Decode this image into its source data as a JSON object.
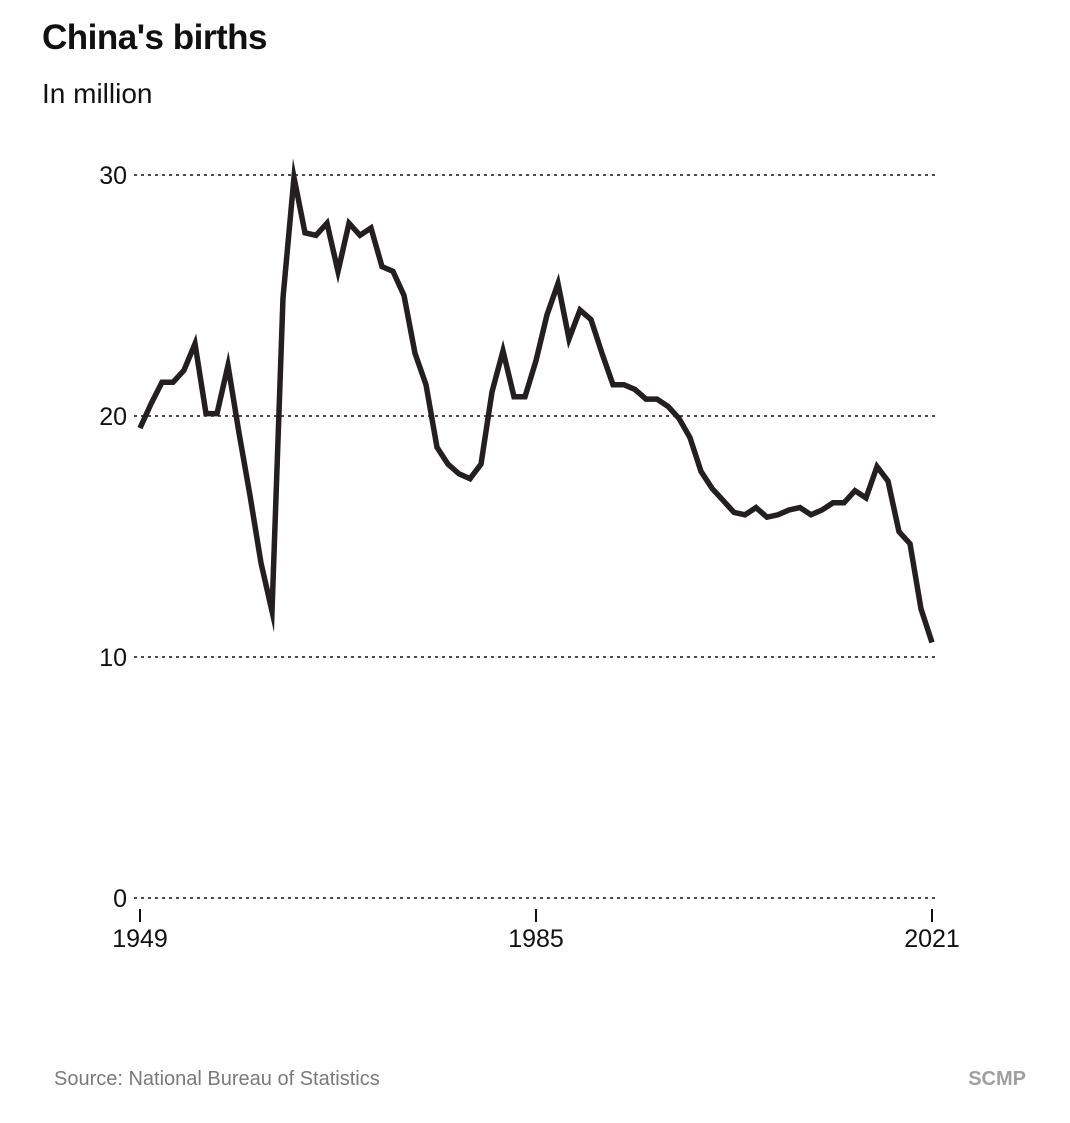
{
  "header": {
    "title": "China's births",
    "subtitle": "In million"
  },
  "footer": {
    "source": "Source: National Bureau of Statistics",
    "brand": "SCMP"
  },
  "colors": {
    "line": "#231f20",
    "grid": "#111111",
    "text": "#111111",
    "footer_text": "#7a7a7a",
    "brand": "#a0a0a0"
  },
  "chart_data": {
    "type": "line",
    "title": "China's births",
    "subtitle": "In million",
    "xlabel": "",
    "ylabel": "",
    "xlim": [
      1949,
      2021
    ],
    "ylim": [
      0,
      30
    ],
    "x_ticks": [
      1949,
      1985,
      2021
    ],
    "y_ticks": [
      0,
      10,
      20,
      30
    ],
    "grid": "horizontal dotted",
    "legend": "none",
    "series": [
      {
        "x": [
          1949,
          1950,
          1951,
          1952,
          1953,
          1954,
          1955,
          1956,
          1957,
          1958,
          1959,
          1960,
          1961,
          1962,
          1963,
          1964,
          1965,
          1966,
          1967,
          1968,
          1969,
          1970,
          1971,
          1972,
          1973,
          1974,
          1975,
          1976,
          1977,
          1978,
          1979,
          1980,
          1981,
          1982,
          1983,
          1984,
          1985,
          1986,
          1987,
          1988,
          1989,
          1990,
          1991,
          1992,
          1993,
          1994,
          1995,
          1996,
          1997,
          1998,
          1999,
          2000,
          2001,
          2002,
          2003,
          2004,
          2005,
          2006,
          2007,
          2008,
          2009,
          2010,
          2011,
          2012,
          2013,
          2014,
          2015,
          2016,
          2017,
          2018,
          2019,
          2020,
          2021
        ],
        "values": [
          19.5,
          20.5,
          21.4,
          21.4,
          21.9,
          23.0,
          20.1,
          20.1,
          22.1,
          19.3,
          16.7,
          13.9,
          11.9,
          24.9,
          29.9,
          27.6,
          27.5,
          28.0,
          26.0,
          28.0,
          27.5,
          27.8,
          26.2,
          26.0,
          25.0,
          22.6,
          21.3,
          18.7,
          18.0,
          17.6,
          17.4,
          18.0,
          21.0,
          22.7,
          20.8,
          20.8,
          22.3,
          24.2,
          25.5,
          23.2,
          24.4,
          24.0,
          22.6,
          21.3,
          21.3,
          21.1,
          20.7,
          20.7,
          20.4,
          19.9,
          19.1,
          17.7,
          17.0,
          16.5,
          16.0,
          15.9,
          16.2,
          15.8,
          15.9,
          16.1,
          16.2,
          15.9,
          16.1,
          16.4,
          16.4,
          16.9,
          16.6,
          17.9,
          17.3,
          15.2,
          14.7,
          12.0,
          10.6
        ]
      }
    ]
  }
}
